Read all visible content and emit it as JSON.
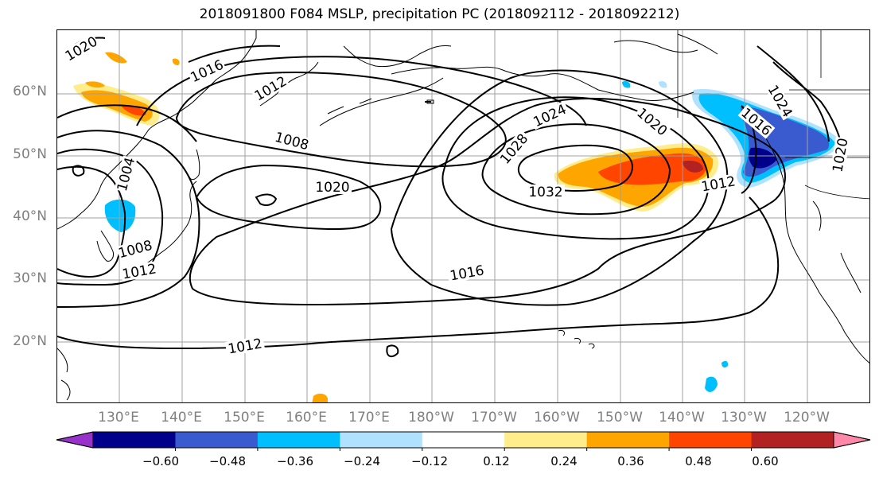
{
  "title": "2018091800 F084 MSLP, precipitation PC (2018092112 - 2018092212)",
  "lat_labels": [
    "60°N",
    "50°N",
    "40°N",
    "30°N",
    "20°N"
  ],
  "lon_labels": [
    "130°E",
    "140°E",
    "150°E",
    "160°E",
    "170°E",
    "180°W",
    "170°W",
    "160°W",
    "150°W",
    "140°W",
    "130°W",
    "120°W"
  ],
  "isobar_labels": [
    "1020",
    "1016",
    "1012",
    "1008",
    "1004",
    "1020",
    "1008",
    "1012",
    "1016",
    "1012",
    "1028",
    "1024",
    "1032",
    "1020",
    "1016",
    "1024",
    "1012",
    "1020"
  ],
  "colorbar": {
    "tick_labels": [
      "−0.60",
      "−0.48",
      "−0.36",
      "−0.24",
      "−0.12",
      "0.12",
      "0.24",
      "0.36",
      "0.48",
      "0.60"
    ],
    "colors": [
      "#9932cc",
      "#00008b",
      "#3a5bcf",
      "#00bfff",
      "#b0e2ff",
      "#ffffff",
      "#ffec8b",
      "#ffa500",
      "#ff4500",
      "#b22222",
      "#ff88aa"
    ]
  },
  "colors": {
    "contour": "#000000",
    "coast": "#000000",
    "grid": "#a0a0a0",
    "axis_labels": "#808080"
  }
}
